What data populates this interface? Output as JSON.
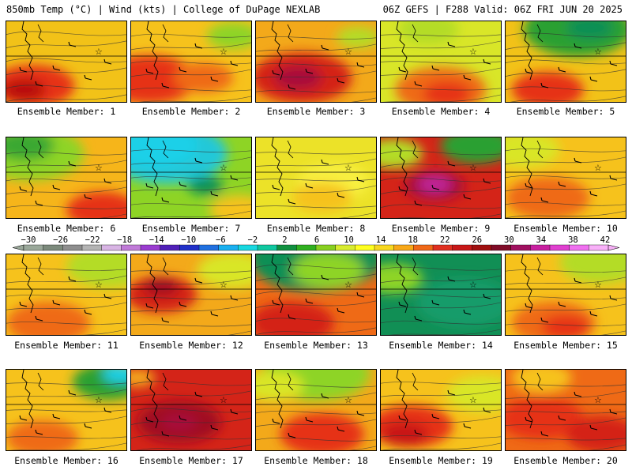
{
  "header": {
    "left": "850mb Temp (°C) | Wind (kts) | College of DuPage NEXLAB",
    "right": "06Z GEFS | F288 Valid: 06Z FRI JUN 20 2025"
  },
  "colorbar": {
    "labels": [
      "-30",
      "-26",
      "-22",
      "-18",
      "-14",
      "-10",
      "-6",
      "-2",
      "2",
      "6",
      "10",
      "14",
      "18",
      "22",
      "26",
      "30",
      "34",
      "38",
      "42"
    ],
    "colors": [
      "#9aa89a",
      "#7c8a7c",
      "#8e8e8e",
      "#b4b4b4",
      "#d8b4e4",
      "#c07ad8",
      "#9a3cd0",
      "#5020b8",
      "#2030c8",
      "#2070e0",
      "#1ab0f0",
      "#18d8e0",
      "#10c8a0",
      "#109040",
      "#30b020",
      "#88d020",
      "#d8ec30",
      "#ffff20",
      "#f8d820",
      "#f8a818",
      "#f06818",
      "#e03020",
      "#c81818",
      "#a01010",
      "#800c28",
      "#a01060",
      "#c820a0",
      "#e040d0",
      "#f070f0",
      "#f8b0f8"
    ]
  },
  "members": [
    {
      "label": "Ensemble Member: 1",
      "base": "#f2c218",
      "hot": [
        [
          0.22,
          0.8,
          0.35,
          "#e63019"
        ],
        [
          0.15,
          0.85,
          0.18,
          "#b81010"
        ]
      ],
      "cool": []
    },
    {
      "label": "Ensemble Member: 2",
      "base": "#f6c21c",
      "hot": [
        [
          0.15,
          0.72,
          0.4,
          "#e63019"
        ],
        [
          0.6,
          0.7,
          0.25,
          "#ef6a16"
        ]
      ],
      "cool": [
        [
          0.85,
          0.18,
          0.22,
          "#8ed425"
        ]
      ]
    },
    {
      "label": "Ensemble Member: 3",
      "base": "#f3a91a",
      "hot": [
        [
          0.38,
          0.7,
          0.42,
          "#d42418"
        ],
        [
          0.35,
          0.7,
          0.2,
          "#a8103a"
        ]
      ],
      "cool": [
        [
          0.85,
          0.2,
          0.18,
          "#b4dc28"
        ]
      ]
    },
    {
      "label": "Ensemble Member: 4",
      "base": "#d9e628",
      "hot": [
        [
          0.5,
          0.85,
          0.38,
          "#ef6a16"
        ],
        [
          0.55,
          0.9,
          0.2,
          "#e63019"
        ]
      ],
      "cool": [
        [
          0.4,
          0.1,
          0.25,
          "#b4dc28"
        ]
      ]
    },
    {
      "label": "Ensemble Member: 5",
      "base": "#f2c218",
      "hot": [
        [
          0.35,
          0.85,
          0.3,
          "#e63019"
        ]
      ],
      "cool": [
        [
          0.6,
          0.1,
          0.45,
          "#2aa030"
        ],
        [
          0.7,
          0.08,
          0.2,
          "#118f55"
        ]
      ]
    },
    {
      "label": "Ensemble Member: 6",
      "base": "#f6b51a",
      "hot": [
        [
          0.8,
          0.9,
          0.3,
          "#e63019"
        ]
      ],
      "cool": [
        [
          0.2,
          0.2,
          0.45,
          "#8ed425"
        ],
        [
          0.15,
          0.1,
          0.25,
          "#3aa830"
        ]
      ]
    },
    {
      "label": "Ensemble Member: 7",
      "base": "#8ed425",
      "hot": [
        [
          0.9,
          0.9,
          0.25,
          "#f6c21c"
        ]
      ],
      "cool": [
        [
          0.3,
          0.2,
          0.5,
          "#20c8d8"
        ],
        [
          0.2,
          0.1,
          0.35,
          "#1ad0e8"
        ],
        [
          0.62,
          0.6,
          0.15,
          "#118f55"
        ]
      ]
    },
    {
      "label": "Ensemble Member: 8",
      "base": "#ece228",
      "hot": [
        [
          0.55,
          0.75,
          0.25,
          "#f6c21c"
        ]
      ],
      "cool": [
        [
          0.65,
          0.55,
          0.3,
          "#f8f040"
        ]
      ]
    },
    {
      "label": "Ensemble Member: 9",
      "base": "#d42418",
      "hot": [
        [
          0.45,
          0.6,
          0.25,
          "#a8103a"
        ],
        [
          0.45,
          0.58,
          0.14,
          "#c0289a"
        ]
      ],
      "cool": [
        [
          0.8,
          0.1,
          0.3,
          "#2aa030"
        ],
        [
          0.1,
          0.2,
          0.25,
          "#b4dc28"
        ]
      ]
    },
    {
      "label": "Ensemble Member: 10",
      "base": "#f6c21c",
      "hot": [
        [
          0.35,
          0.75,
          0.35,
          "#ef6a16"
        ]
      ],
      "cool": [
        [
          0.15,
          0.15,
          0.3,
          "#d9e628"
        ]
      ]
    },
    {
      "label": "Ensemble Member: 11",
      "base": "#f6c21c",
      "hot": [
        [
          0.35,
          0.85,
          0.35,
          "#ef6a16"
        ]
      ],
      "cool": [
        [
          0.85,
          0.15,
          0.35,
          "#b4dc28"
        ]
      ]
    },
    {
      "label": "Ensemble Member: 12",
      "base": "#f3a91a",
      "hot": [
        [
          0.25,
          0.5,
          0.3,
          "#d42418"
        ],
        [
          0.25,
          0.4,
          0.15,
          "#a01020"
        ]
      ],
      "cool": [
        [
          0.85,
          0.2,
          0.3,
          "#d9e628"
        ]
      ]
    },
    {
      "label": "Ensemble Member: 13",
      "base": "#ef6a16",
      "hot": [
        [
          0.3,
          0.85,
          0.35,
          "#d42418"
        ]
      ],
      "cool": [
        [
          0.5,
          0.05,
          0.55,
          "#118f55"
        ],
        [
          0.6,
          0.2,
          0.3,
          "#8ed425"
        ]
      ]
    },
    {
      "label": "Ensemble Member: 14",
      "base": "#118f55",
      "hot": [
        [
          0.1,
          0.3,
          0.25,
          "#8ed425"
        ]
      ],
      "cool": [
        [
          0.7,
          0.6,
          0.4,
          "#169c6a"
        ]
      ]
    },
    {
      "label": "Ensemble Member: 15",
      "base": "#f6c21c",
      "hot": [
        [
          0.4,
          0.85,
          0.35,
          "#ef6a16"
        ],
        [
          0.5,
          0.9,
          0.2,
          "#e63019"
        ]
      ],
      "cool": [
        [
          0.8,
          0.1,
          0.35,
          "#b4dc28"
        ]
      ]
    },
    {
      "label": "Ensemble Member: 16",
      "base": "#f6c21c",
      "hot": [
        [
          0.3,
          0.85,
          0.3,
          "#ef6a16"
        ]
      ],
      "cool": [
        [
          0.85,
          0.15,
          0.3,
          "#2aa030"
        ],
        [
          0.95,
          0.05,
          0.15,
          "#1ad0e8"
        ]
      ]
    },
    {
      "label": "Ensemble Member: 17",
      "base": "#d42418",
      "hot": [
        [
          0.4,
          0.65,
          0.35,
          "#a01020"
        ],
        [
          0.4,
          0.65,
          0.15,
          "#a8103a"
        ]
      ],
      "cool": [
        [
          0.05,
          0.1,
          0.15,
          "#f3a91a"
        ]
      ]
    },
    {
      "label": "Ensemble Member: 18",
      "base": "#f3a91a",
      "hot": [
        [
          0.55,
          0.8,
          0.35,
          "#e63019"
        ]
      ],
      "cool": [
        [
          0.5,
          0.05,
          0.45,
          "#8ed425"
        ],
        [
          0.15,
          0.2,
          0.25,
          "#d9e628"
        ]
      ]
    },
    {
      "label": "Ensemble Member: 19",
      "base": "#f6c21c",
      "hot": [
        [
          0.25,
          0.7,
          0.35,
          "#e63019"
        ],
        [
          0.2,
          0.8,
          0.2,
          "#c81818"
        ]
      ],
      "cool": [
        [
          0.85,
          0.3,
          0.3,
          "#d9e628"
        ]
      ]
    },
    {
      "label": "Ensemble Member: 20",
      "base": "#ef6a16",
      "hot": [
        [
          0.3,
          0.6,
          0.35,
          "#e63019"
        ],
        [
          0.8,
          0.8,
          0.3,
          "#d42418"
        ]
      ],
      "cool": [
        [
          0.3,
          0.1,
          0.25,
          "#f6c21c"
        ]
      ]
    }
  ]
}
